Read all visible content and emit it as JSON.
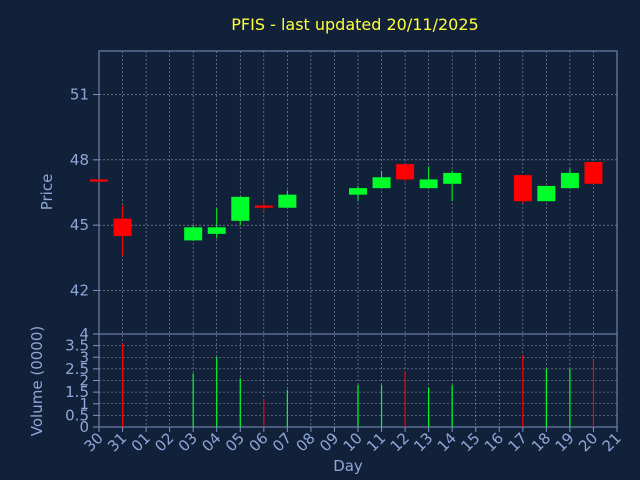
{
  "chart_data": {
    "type": "candlestick",
    "title": "PFIS - last updated 20/11/2025",
    "xlabel": "Day",
    "x_tick_labels": [
      "30",
      "31",
      "01",
      "02",
      "03",
      "04",
      "05",
      "06",
      "07",
      "08",
      "09",
      "10",
      "11",
      "12",
      "13",
      "14",
      "15",
      "16",
      "17",
      "18",
      "19",
      "20",
      "21"
    ],
    "price_panel": {
      "ylabel": "Price",
      "ylim": [
        40,
        53
      ],
      "yticks": [
        "42",
        "45",
        "48",
        "51"
      ],
      "candles": [
        {
          "day": "30",
          "open": 47.1,
          "high": 47.1,
          "low": 47.0,
          "close": 47.0,
          "direction": "down"
        },
        {
          "day": "31",
          "open": 45.3,
          "high": 45.9,
          "low": 43.6,
          "close": 44.5,
          "direction": "down"
        },
        {
          "day": "03",
          "open": 44.3,
          "high": 45.0,
          "low": 44.3,
          "close": 44.9,
          "direction": "up"
        },
        {
          "day": "04",
          "open": 44.6,
          "high": 45.8,
          "low": 44.4,
          "close": 44.9,
          "direction": "up"
        },
        {
          "day": "05",
          "open": 45.2,
          "high": 46.3,
          "low": 45.0,
          "close": 46.3,
          "direction": "up"
        },
        {
          "day": "06",
          "open": 45.9,
          "high": 46.1,
          "low": 45.6,
          "close": 45.8,
          "direction": "down"
        },
        {
          "day": "07",
          "open": 45.8,
          "high": 46.6,
          "low": 45.8,
          "close": 46.4,
          "direction": "up"
        },
        {
          "day": "10",
          "open": 46.4,
          "high": 46.8,
          "low": 46.1,
          "close": 46.7,
          "direction": "up"
        },
        {
          "day": "11",
          "open": 46.7,
          "high": 47.5,
          "low": 46.7,
          "close": 47.2,
          "direction": "up"
        },
        {
          "day": "12",
          "open": 47.8,
          "high": 47.8,
          "low": 47.0,
          "close": 47.1,
          "direction": "down"
        },
        {
          "day": "13",
          "open": 46.7,
          "high": 47.7,
          "low": 46.7,
          "close": 47.1,
          "direction": "up"
        },
        {
          "day": "14",
          "open": 46.9,
          "high": 47.5,
          "low": 46.1,
          "close": 47.4,
          "direction": "up"
        },
        {
          "day": "17",
          "open": 47.3,
          "high": 47.3,
          "low": 46.0,
          "close": 46.1,
          "direction": "down"
        },
        {
          "day": "18",
          "open": 46.1,
          "high": 46.8,
          "low": 46.1,
          "close": 46.8,
          "direction": "up"
        },
        {
          "day": "19",
          "open": 46.7,
          "high": 47.6,
          "low": 46.7,
          "close": 47.4,
          "direction": "up"
        },
        {
          "day": "20",
          "open": 47.9,
          "high": 47.9,
          "low": 46.9,
          "close": 46.9,
          "direction": "down"
        }
      ]
    },
    "volume_panel": {
      "ylabel": "Volume (0000)",
      "ylim": [
        0,
        4
      ],
      "yticks": [
        "0",
        "0.5",
        "1",
        "1.5",
        "2",
        "2.5",
        "3",
        "3.5",
        "4"
      ],
      "bars": [
        {
          "day": "31",
          "value": 3.6,
          "direction": "down"
        },
        {
          "day": "03",
          "value": 2.3,
          "direction": "up"
        },
        {
          "day": "04",
          "value": 3.0,
          "direction": "up"
        },
        {
          "day": "05",
          "value": 2.1,
          "direction": "up"
        },
        {
          "day": "06",
          "value": 1.2,
          "direction": "down"
        },
        {
          "day": "07",
          "value": 1.6,
          "direction": "up"
        },
        {
          "day": "10",
          "value": 1.8,
          "direction": "up"
        },
        {
          "day": "11",
          "value": 1.8,
          "direction": "up"
        },
        {
          "day": "12",
          "value": 2.4,
          "direction": "down"
        },
        {
          "day": "13",
          "value": 1.7,
          "direction": "up"
        },
        {
          "day": "14",
          "value": 1.8,
          "direction": "up"
        },
        {
          "day": "17",
          "value": 3.1,
          "direction": "down"
        },
        {
          "day": "18",
          "value": 2.5,
          "direction": "up"
        },
        {
          "day": "19",
          "value": 2.5,
          "direction": "up"
        },
        {
          "day": "20",
          "value": 2.9,
          "direction": "down"
        }
      ]
    },
    "grid": true,
    "colors": {
      "background": "#12213a",
      "title": "#ffff3c",
      "axis_text": "#8fa6d8",
      "grid": "#ffffff",
      "frame": "#7f93c0",
      "up": "#00ff2a",
      "down": "#ff0000"
    }
  }
}
